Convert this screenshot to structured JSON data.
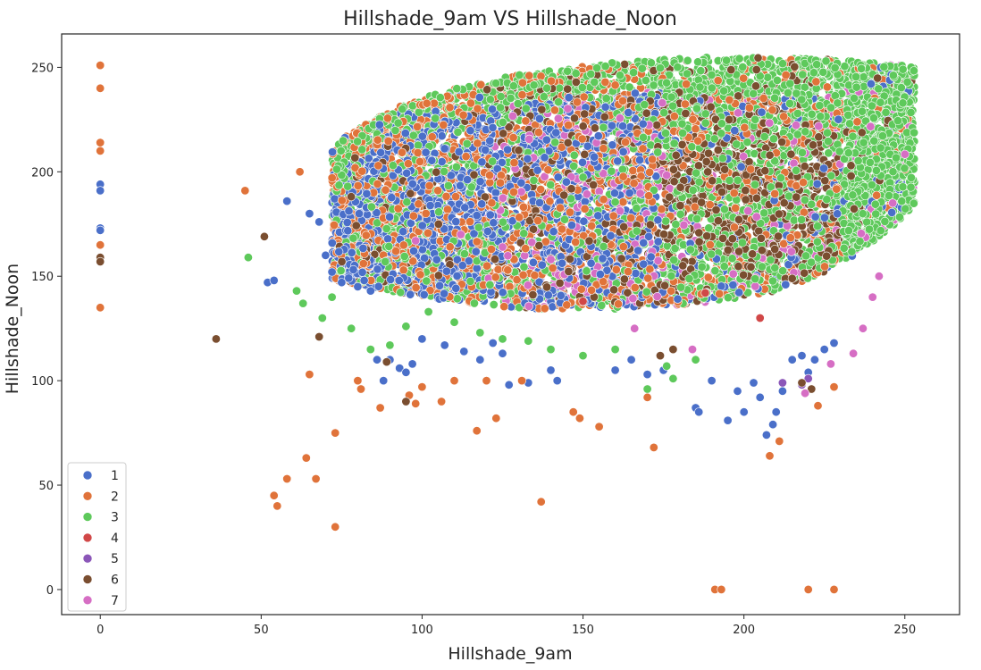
{
  "chart_data": {
    "type": "scatter",
    "title": "Hillshade_9am VS Hillshade_Noon",
    "xlabel": "Hillshade_9am",
    "ylabel": "Hillshade_Noon",
    "xlim": [
      -12,
      267
    ],
    "ylim": [
      -12,
      266
    ],
    "xticks": [
      0,
      50,
      100,
      150,
      200,
      250
    ],
    "yticks": [
      0,
      50,
      100,
      150,
      200,
      250
    ],
    "grid": false,
    "legend_position": "lower-left",
    "series": [
      {
        "name": "1",
        "color": "#4a6fc9"
      },
      {
        "name": "2",
        "color": "#e0733a"
      },
      {
        "name": "3",
        "color": "#5ec95b"
      },
      {
        "name": "4",
        "color": "#d14747"
      },
      {
        "name": "5",
        "color": "#8b56b8"
      },
      {
        "name": "6",
        "color": "#7a4e30"
      },
      {
        "name": "7",
        "color": "#d66ec4"
      }
    ],
    "points": {
      "1": [
        [
          0,
          194
        ],
        [
          0,
          191
        ],
        [
          0,
          173
        ],
        [
          0,
          172
        ],
        [
          52,
          147
        ],
        [
          54,
          148
        ],
        [
          58,
          186
        ],
        [
          65,
          180
        ],
        [
          68,
          176
        ],
        [
          70,
          160
        ],
        [
          72,
          152
        ],
        [
          75,
          147
        ],
        [
          80,
          145
        ],
        [
          82,
          148
        ],
        [
          84,
          143
        ],
        [
          86,
          110
        ],
        [
          88,
          100
        ],
        [
          90,
          110
        ],
        [
          93,
          106
        ],
        [
          95,
          104
        ],
        [
          97,
          108
        ],
        [
          100,
          120
        ],
        [
          107,
          117
        ],
        [
          113,
          114
        ],
        [
          118,
          110
        ],
        [
          122,
          118
        ],
        [
          125,
          113
        ],
        [
          127,
          98
        ],
        [
          133,
          99
        ],
        [
          140,
          105
        ],
        [
          142,
          100
        ],
        [
          160,
          105
        ],
        [
          165,
          110
        ],
        [
          170,
          103
        ],
        [
          175,
          105
        ],
        [
          185,
          87
        ],
        [
          186,
          85
        ],
        [
          190,
          100
        ],
        [
          195,
          81
        ],
        [
          198,
          95
        ],
        [
          200,
          85
        ],
        [
          203,
          99
        ],
        [
          205,
          92
        ],
        [
          207,
          74
        ],
        [
          209,
          79
        ],
        [
          210,
          85
        ],
        [
          212,
          95
        ],
        [
          215,
          110
        ],
        [
          218,
          112
        ],
        [
          220,
          104
        ],
        [
          222,
          110
        ],
        [
          225,
          115
        ],
        [
          228,
          118
        ]
      ],
      "2": [
        [
          0,
          251
        ],
        [
          0,
          240
        ],
        [
          0,
          214
        ],
        [
          0,
          210
        ],
        [
          0,
          165
        ],
        [
          0,
          135
        ],
        [
          45,
          191
        ],
        [
          54,
          45
        ],
        [
          55,
          40
        ],
        [
          58,
          53
        ],
        [
          62,
          200
        ],
        [
          64,
          63
        ],
        [
          65,
          103
        ],
        [
          67,
          53
        ],
        [
          73,
          30
        ],
        [
          73,
          75
        ],
        [
          80,
          100
        ],
        [
          81,
          96
        ],
        [
          87,
          87
        ],
        [
          96,
          93
        ],
        [
          98,
          89
        ],
        [
          100,
          97
        ],
        [
          106,
          90
        ],
        [
          110,
          100
        ],
        [
          117,
          76
        ],
        [
          120,
          100
        ],
        [
          123,
          82
        ],
        [
          131,
          100
        ],
        [
          137,
          42
        ],
        [
          147,
          85
        ],
        [
          149,
          82
        ],
        [
          155,
          78
        ],
        [
          170,
          92
        ],
        [
          172,
          68
        ],
        [
          191,
          0
        ],
        [
          193,
          0
        ],
        [
          208,
          64
        ],
        [
          211,
          71
        ],
        [
          220,
          0
        ],
        [
          223,
          88
        ],
        [
          228,
          0
        ],
        [
          228,
          97
        ]
      ],
      "3": [
        [
          46,
          159
        ],
        [
          61,
          143
        ],
        [
          63,
          137
        ],
        [
          69,
          130
        ],
        [
          72,
          140
        ],
        [
          78,
          125
        ],
        [
          84,
          115
        ],
        [
          90,
          117
        ],
        [
          95,
          126
        ],
        [
          102,
          133
        ],
        [
          110,
          128
        ],
        [
          118,
          123
        ],
        [
          125,
          120
        ],
        [
          133,
          119
        ],
        [
          140,
          115
        ],
        [
          150,
          112
        ],
        [
          160,
          115
        ],
        [
          170,
          96
        ],
        [
          176,
          107
        ],
        [
          178,
          101
        ],
        [
          185,
          110
        ]
      ],
      "4": [
        [
          150,
          138
        ],
        [
          188,
          142
        ],
        [
          205,
          130
        ]
      ],
      "5": [
        [
          212,
          99
        ],
        [
          218,
          98
        ],
        [
          220,
          101
        ]
      ],
      "6": [
        [
          0,
          159
        ],
        [
          0,
          157
        ],
        [
          36,
          120
        ],
        [
          51,
          169
        ],
        [
          68,
          121
        ],
        [
          89,
          109
        ],
        [
          95,
          90
        ],
        [
          174,
          112
        ],
        [
          178,
          115
        ],
        [
          218,
          99
        ],
        [
          221,
          96
        ]
      ],
      "7": [
        [
          98,
          167
        ],
        [
          112,
          170
        ],
        [
          125,
          164
        ],
        [
          140,
          158
        ],
        [
          166,
          125
        ],
        [
          184,
          115
        ],
        [
          219,
          94
        ],
        [
          227,
          108
        ],
        [
          234,
          113
        ],
        [
          237,
          125
        ],
        [
          240,
          140
        ],
        [
          242,
          150
        ]
      ]
    }
  }
}
